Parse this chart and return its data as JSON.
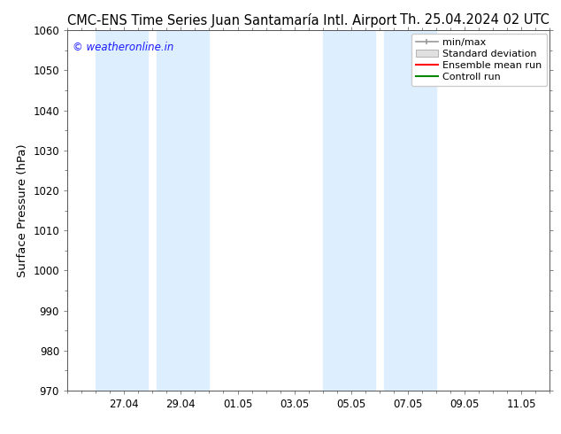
{
  "title_left": "CMC-ENS Time Series Juan Santamaría Intl. Airport",
  "title_right": "Th. 25.04.2024 02 UTC",
  "ylabel": "Surface Pressure (hPa)",
  "ylim": [
    970,
    1060
  ],
  "yticks": [
    970,
    980,
    990,
    1000,
    1010,
    1020,
    1030,
    1040,
    1050,
    1060
  ],
  "x_tick_labels": [
    "27.04",
    "29.04",
    "01.05",
    "03.05",
    "05.05",
    "07.05",
    "09.05",
    "11.05"
  ],
  "x_tick_positions": [
    2,
    4,
    6,
    8,
    10,
    12,
    14,
    16
  ],
  "xlim": [
    0,
    17
  ],
  "shaded_bands": [
    {
      "x_start": 1.0,
      "x_end": 2.85,
      "color": "#ddeeff"
    },
    {
      "x_start": 3.15,
      "x_end": 5.0,
      "color": "#ddeeff"
    },
    {
      "x_start": 9.0,
      "x_end": 10.85,
      "color": "#ddeeff"
    },
    {
      "x_start": 11.15,
      "x_end": 13.0,
      "color": "#ddeeff"
    }
  ],
  "watermark_text": "© weatheronline.in",
  "watermark_color": "#1a1aff",
  "legend_labels": [
    "min/max",
    "Standard deviation",
    "Ensemble mean run",
    "Controll run"
  ],
  "legend_colors_line": [
    "#aaaaaa",
    "#cccccc",
    "#ff0000",
    "#008800"
  ],
  "background_color": "#ffffff",
  "plot_bg_color": "#ffffff",
  "tick_label_fontsize": 8.5,
  "title_fontsize": 10.5,
  "ylabel_fontsize": 9.5,
  "legend_fontsize": 8
}
